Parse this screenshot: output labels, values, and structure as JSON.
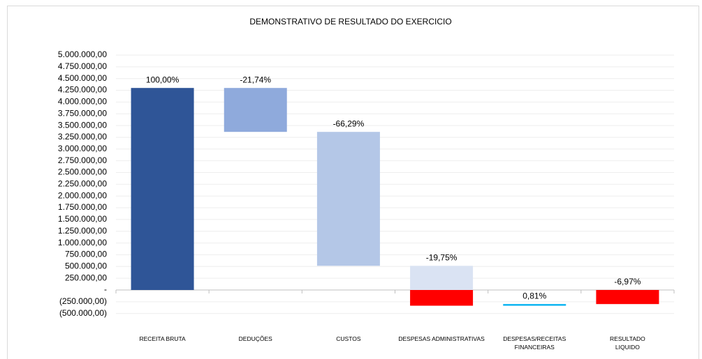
{
  "chart_data": {
    "type": "waterfall",
    "title": "DEMONSTRATIVO DE RESULTADO DO EXERCICIO",
    "categories": [
      "RECEITA BRUTA",
      "DEDUÇÕES",
      "CUSTOS",
      "DESPESAS ADMINISTRATIVAS",
      "DESPESAS/RECEITAS\nFINANCEIRAS",
      "RESULTADO\nLIQUIDO"
    ],
    "values": [
      4300000,
      -934820,
      -2850470,
      -849250,
      34830,
      -299710
    ],
    "total_index": 5,
    "percent_labels": [
      "100,00%",
      "-21,74%",
      "-66,29%",
      "-19,75%",
      "0,81%",
      "-6,97%"
    ],
    "colors": [
      "#2f5597",
      "#8faadc",
      "#b4c7e7",
      {
        "above": "#dae3f3",
        "below": "#ff0000"
      },
      "#00b0f0",
      "#ff0000"
    ],
    "ylim": [
      -500000,
      5000000
    ],
    "yticks": [
      {
        "value": -500000,
        "label": "(500.000,00)"
      },
      {
        "value": -250000,
        "label": "(250.000,00)"
      },
      {
        "value": 0,
        "label": "-"
      },
      {
        "value": 250000,
        "label": "250.000,00"
      },
      {
        "value": 500000,
        "label": "500.000,00"
      },
      {
        "value": 750000,
        "label": "750.000,00"
      },
      {
        "value": 1000000,
        "label": "1.000.000,00"
      },
      {
        "value": 1250000,
        "label": "1.250.000,00"
      },
      {
        "value": 1500000,
        "label": "1.500.000,00"
      },
      {
        "value": 1750000,
        "label": "1.750.000,00"
      },
      {
        "value": 2000000,
        "label": "2.000.000,00"
      },
      {
        "value": 2250000,
        "label": "2.250.000,00"
      },
      {
        "value": 2500000,
        "label": "2.500.000,00"
      },
      {
        "value": 2750000,
        "label": "2.750.000,00"
      },
      {
        "value": 3000000,
        "label": "3.000.000,00"
      },
      {
        "value": 3250000,
        "label": "3.250.000,00"
      },
      {
        "value": 3500000,
        "label": "3.500.000,00"
      },
      {
        "value": 3750000,
        "label": "3.750.000,00"
      },
      {
        "value": 4000000,
        "label": "4.000.000,00"
      },
      {
        "value": 4250000,
        "label": "4.250.000,00"
      },
      {
        "value": 4500000,
        "label": "4.500.000,00"
      },
      {
        "value": 4750000,
        "label": "4.750.000,00"
      },
      {
        "value": 5000000,
        "label": "5.000.000,00"
      }
    ],
    "grid": true
  }
}
